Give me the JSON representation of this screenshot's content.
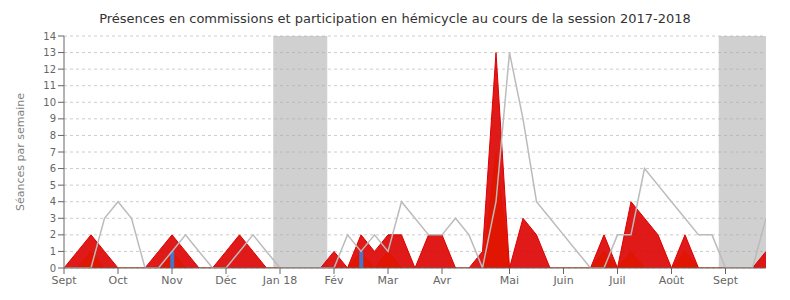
{
  "chart_data": {
    "type": "area",
    "title": "Présences en commissions et participation en hémicycle au cours de la session 2017-2018",
    "ylabel": "Séances par semaine",
    "x": [
      0,
      1,
      2,
      3,
      4,
      5,
      6,
      7,
      8,
      9,
      10,
      11,
      12,
      13,
      14,
      15,
      16,
      17,
      18,
      19,
      20,
      21,
      22,
      23,
      24,
      25,
      26,
      27,
      28,
      29,
      30,
      31,
      32,
      33,
      34,
      35,
      36,
      37,
      38,
      39,
      40,
      41,
      42,
      43,
      44,
      45,
      46,
      47,
      48,
      49,
      50,
      51,
      52
    ],
    "xlim": [
      0,
      52
    ],
    "xticks": [
      {
        "value": 0,
        "label": "Sept"
      },
      {
        "value": 4,
        "label": "Oct"
      },
      {
        "value": 8,
        "label": "Nov"
      },
      {
        "value": 12,
        "label": "Déc"
      },
      {
        "value": 16,
        "label": "Jan 18"
      },
      {
        "value": 20,
        "label": "Fév"
      },
      {
        "value": 24,
        "label": "Mar"
      },
      {
        "value": 28,
        "label": "Avr"
      },
      {
        "value": 33,
        "label": "Mai"
      },
      {
        "value": 37,
        "label": "Juin"
      },
      {
        "value": 41,
        "label": "Juil"
      },
      {
        "value": 45,
        "label": "Août"
      },
      {
        "value": 49,
        "label": "Sept"
      }
    ],
    "ylim": [
      0,
      14
    ],
    "yticks": [
      0,
      1,
      2,
      3,
      4,
      5,
      6,
      7,
      8,
      9,
      10,
      11,
      12,
      13,
      14
    ],
    "grid": true,
    "x_spans": [
      {
        "xstart": 15.5,
        "xend": 19.5,
        "color": "#aaaaaa"
      },
      {
        "xstart": 48.5,
        "xend": 52.5,
        "color": "#aaaaaa"
      }
    ],
    "series": [
      {
        "type": "line",
        "color": "#bbbbbb",
        "values": [
          0,
          0,
          0,
          3,
          4,
          3,
          0,
          0,
          1,
          2,
          1,
          0,
          0,
          1,
          2,
          1,
          0,
          0,
          0,
          0,
          0,
          2,
          1,
          2,
          1,
          4,
          3,
          2,
          2,
          3,
          2,
          0,
          4,
          13,
          9,
          4,
          3,
          2,
          1,
          0,
          0,
          2,
          2,
          6,
          5,
          4,
          3,
          2,
          2,
          0,
          0,
          0,
          3
        ]
      },
      {
        "type": "area",
        "color": "#ffcc00",
        "values": [
          0,
          0,
          1,
          0,
          0,
          0,
          0,
          0,
          1,
          0,
          0,
          0,
          0,
          0,
          0,
          0,
          0,
          0,
          0,
          0,
          0,
          0,
          1,
          0,
          1,
          0,
          0,
          0,
          0,
          0,
          0,
          0,
          7,
          0,
          0,
          0,
          0,
          0,
          0,
          0,
          1,
          0,
          1,
          0,
          0,
          0,
          1,
          0,
          0,
          0,
          0,
          0,
          0
        ]
      },
      {
        "type": "area",
        "color": "#dd0000",
        "values": [
          0,
          1,
          2,
          1,
          0,
          0,
          0,
          1,
          2,
          1,
          0,
          0,
          1,
          2,
          1,
          0,
          0,
          0,
          0,
          0,
          1,
          0,
          2,
          1,
          2,
          2,
          0,
          2,
          2,
          0,
          0,
          1,
          13,
          0,
          3,
          2,
          0,
          0,
          0,
          0,
          2,
          0,
          4,
          3,
          2,
          0,
          2,
          0,
          0,
          0,
          0,
          0,
          1
        ]
      },
      {
        "type": "bar",
        "color": "#4477cc",
        "values": [
          null,
          null,
          null,
          null,
          null,
          null,
          null,
          null,
          1,
          null,
          null,
          null,
          null,
          null,
          null,
          null,
          null,
          null,
          null,
          null,
          null,
          null,
          1,
          null,
          null,
          null,
          null,
          null,
          null,
          null,
          null,
          null,
          null,
          null,
          null,
          null,
          null,
          null,
          null,
          null,
          null,
          null,
          null,
          null,
          null,
          null,
          null,
          null,
          null,
          null,
          null,
          null,
          null
        ]
      }
    ]
  }
}
